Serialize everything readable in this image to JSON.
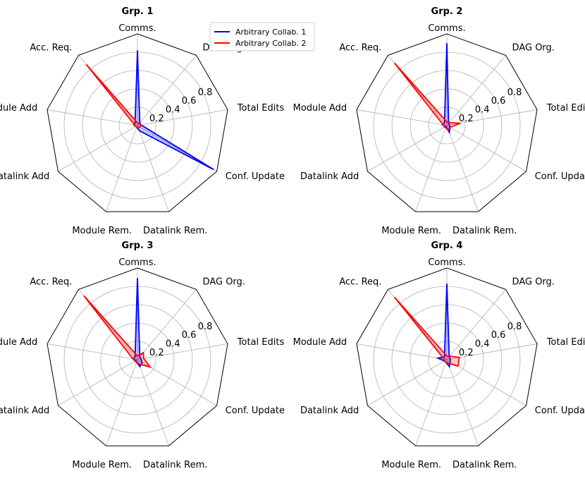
{
  "chart_data": {
    "type": "radar",
    "axes": [
      "Comms.",
      "DAG Org.",
      "Total Edits",
      "Conf. Update",
      "Datalink Rem.",
      "Module Rem.",
      "Datalink Add",
      "Module Add",
      "Acc. Req."
    ],
    "rlim": [
      0,
      1
    ],
    "rticks": [
      0.2,
      0.4,
      0.6,
      0.8
    ],
    "rtick_labels": [
      "0.2",
      "0.4",
      "0.6",
      "0.8"
    ],
    "grid": true,
    "legend_position": "top-center",
    "legend": [
      {
        "name": "Arbitrary Collab. 1",
        "color": "#0000ff"
      },
      {
        "name": "Arbitrary Collab. 2",
        "color": "#ff0000"
      }
    ],
    "panels": [
      {
        "title": "Grp. 1",
        "series": [
          {
            "name": "Arbitrary Collab. 1",
            "color": "#0000ff",
            "values": [
              0.82,
              0.04,
              0.04,
              0.96,
              0.06,
              0.02,
              0.02,
              0.04,
              0.04
            ]
          },
          {
            "name": "Arbitrary Collab. 2",
            "color": "#ff0000",
            "values": [
              0.03,
              0.03,
              0.04,
              0.03,
              0.03,
              0.02,
              0.02,
              0.03,
              0.87
            ]
          }
        ]
      },
      {
        "title": "Grp. 2",
        "series": [
          {
            "name": "Arbitrary Collab. 1",
            "color": "#0000ff",
            "values": [
              0.9,
              0.03,
              0.03,
              0.04,
              0.08,
              0.02,
              0.02,
              0.05,
              0.04
            ]
          },
          {
            "name": "Arbitrary Collab. 2",
            "color": "#ff0000",
            "values": [
              0.04,
              0.04,
              0.15,
              0.04,
              0.04,
              0.03,
              0.03,
              0.04,
              0.89
            ]
          }
        ]
      },
      {
        "title": "Grp. 3",
        "series": [
          {
            "name": "Arbitrary Collab. 1",
            "color": "#0000ff",
            "values": [
              0.89,
              0.04,
              0.04,
              0.06,
              0.08,
              0.03,
              0.02,
              0.05,
              0.04
            ]
          },
          {
            "name": "Arbitrary Collab. 2",
            "color": "#ff0000",
            "values": [
              0.04,
              0.1,
              0.07,
              0.16,
              0.05,
              0.03,
              0.03,
              0.05,
              0.91
            ]
          }
        ]
      },
      {
        "title": "Grp. 4",
        "series": [
          {
            "name": "Arbitrary Collab. 1",
            "color": "#0000ff",
            "values": [
              0.83,
              0.04,
              0.04,
              0.04,
              0.08,
              0.03,
              0.03,
              0.1,
              0.04
            ]
          },
          {
            "name": "Arbitrary Collab. 2",
            "color": "#ff0000",
            "values": [
              0.04,
              0.05,
              0.14,
              0.14,
              0.04,
              0.03,
              0.03,
              0.03,
              0.89
            ]
          }
        ]
      }
    ]
  }
}
